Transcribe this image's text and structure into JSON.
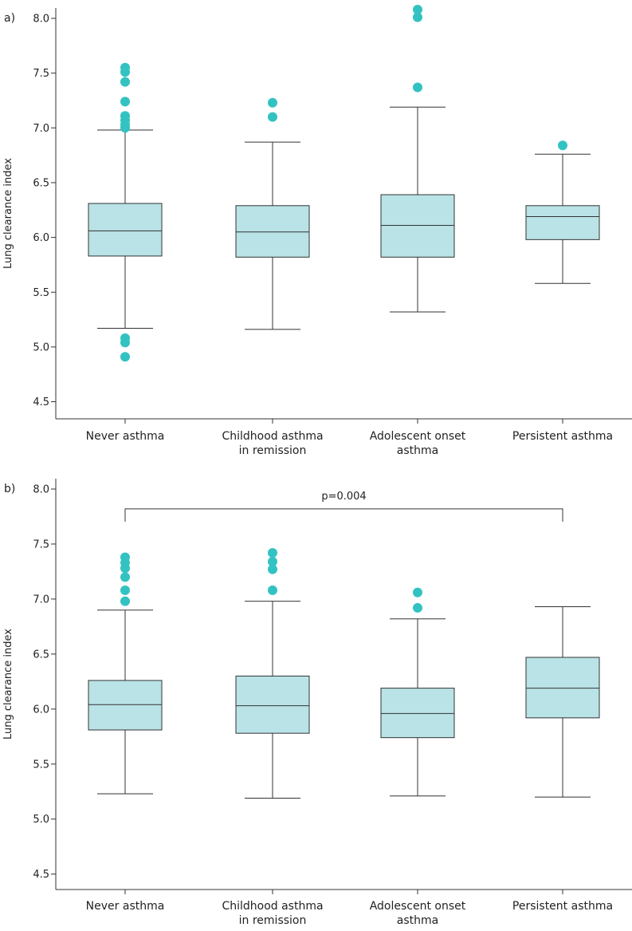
{
  "figure": {
    "colors": {
      "box_fill": "#b9e3e6",
      "outlier": "#33c2c2",
      "line": "#333333"
    }
  },
  "chart_data": [
    {
      "type": "boxplot",
      "panel_label": "a)",
      "title": "",
      "xlabel": "",
      "ylabel": "Lung clearance index",
      "ylim": [
        4.5,
        8.0
      ],
      "yticks": [
        "4.5",
        "5.0",
        "5.5",
        "6.0",
        "6.5",
        "7.0",
        "7.5",
        "8.0"
      ],
      "categories": [
        [
          "Never asthma"
        ],
        [
          "Childhood asthma",
          "in remission"
        ],
        [
          "Adolescent onset",
          "asthma"
        ],
        [
          "Persistent asthma"
        ]
      ],
      "boxes": [
        {
          "whisker_low": 5.17,
          "q1": 5.83,
          "median": 6.06,
          "q3": 6.31,
          "whisker_high": 6.98,
          "outliers": [
            4.91,
            5.04,
            5.08,
            7.0,
            7.03,
            7.07,
            7.11,
            7.24,
            7.42,
            7.51,
            7.55
          ]
        },
        {
          "whisker_low": 5.16,
          "q1": 5.82,
          "median": 6.05,
          "q3": 6.29,
          "whisker_high": 6.87,
          "outliers": [
            7.1,
            7.23
          ]
        },
        {
          "whisker_low": 5.32,
          "q1": 5.82,
          "median": 6.11,
          "q3": 6.39,
          "whisker_high": 7.19,
          "outliers": [
            7.37,
            8.01,
            8.08
          ]
        },
        {
          "whisker_low": 5.58,
          "q1": 5.98,
          "median": 6.19,
          "q3": 6.29,
          "whisker_high": 6.76,
          "outliers": [
            6.84
          ]
        }
      ],
      "annotations": []
    },
    {
      "type": "boxplot",
      "panel_label": "b)",
      "title": "",
      "xlabel": "",
      "ylabel": "Lung clearance index",
      "ylim": [
        4.5,
        8.0
      ],
      "yticks": [
        "4.5",
        "5.0",
        "5.5",
        "6.0",
        "6.5",
        "7.0",
        "7.5",
        "8.0"
      ],
      "categories": [
        [
          "Never asthma"
        ],
        [
          "Childhood asthma",
          "in remission"
        ],
        [
          "Adolescent onset",
          "asthma"
        ],
        [
          "Persistent asthma"
        ]
      ],
      "boxes": [
        {
          "whisker_low": 5.23,
          "q1": 5.81,
          "median": 6.04,
          "q3": 6.26,
          "whisker_high": 6.9,
          "outliers": [
            6.98,
            7.08,
            7.2,
            7.28,
            7.33,
            7.38
          ]
        },
        {
          "whisker_low": 5.19,
          "q1": 5.78,
          "median": 6.03,
          "q3": 6.3,
          "whisker_high": 6.98,
          "outliers": [
            7.08,
            7.27,
            7.34,
            7.42
          ]
        },
        {
          "whisker_low": 5.21,
          "q1": 5.74,
          "median": 5.96,
          "q3": 6.19,
          "whisker_high": 6.82,
          "outliers": [
            6.92,
            7.06
          ]
        },
        {
          "whisker_low": 5.2,
          "q1": 5.92,
          "median": 6.19,
          "q3": 6.47,
          "whisker_high": 6.93,
          "outliers": []
        }
      ],
      "annotations": [
        {
          "text": "p=0.004",
          "from_category": 0,
          "to_category": 3,
          "y": 7.82
        }
      ]
    }
  ]
}
